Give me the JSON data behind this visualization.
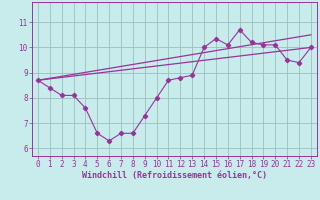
{
  "xlabel": "Windchill (Refroidissement éolien,°C)",
  "bg_color": "#c8ecec",
  "line_color": "#993399",
  "grid_color": "#9bbfbf",
  "xlim": [
    -0.5,
    23.5
  ],
  "ylim": [
    5.7,
    11.8
  ],
  "xticks": [
    0,
    1,
    2,
    3,
    4,
    5,
    6,
    7,
    8,
    9,
    10,
    11,
    12,
    13,
    14,
    15,
    16,
    17,
    18,
    19,
    20,
    21,
    22,
    23
  ],
  "yticks": [
    6,
    7,
    8,
    9,
    10,
    11
  ],
  "series1_x": [
    0,
    1,
    2,
    3,
    4,
    5,
    6,
    7,
    8,
    9,
    10,
    11,
    12,
    13,
    14,
    15,
    16,
    17,
    18,
    19,
    20,
    21,
    22,
    23
  ],
  "series1_y": [
    8.7,
    8.4,
    8.1,
    8.1,
    7.6,
    6.6,
    6.3,
    6.6,
    6.6,
    7.3,
    8.0,
    8.7,
    8.8,
    8.9,
    10.0,
    10.35,
    10.1,
    10.7,
    10.2,
    10.1,
    10.1,
    9.5,
    9.4,
    10.0
  ],
  "trend1_x": [
    0,
    23
  ],
  "trend1_y": [
    8.7,
    10.0
  ],
  "trend2_x": [
    0,
    23
  ],
  "trend2_y": [
    8.7,
    10.5
  ],
  "xlabel_fontsize": 6.0,
  "tick_fontsize": 5.5
}
